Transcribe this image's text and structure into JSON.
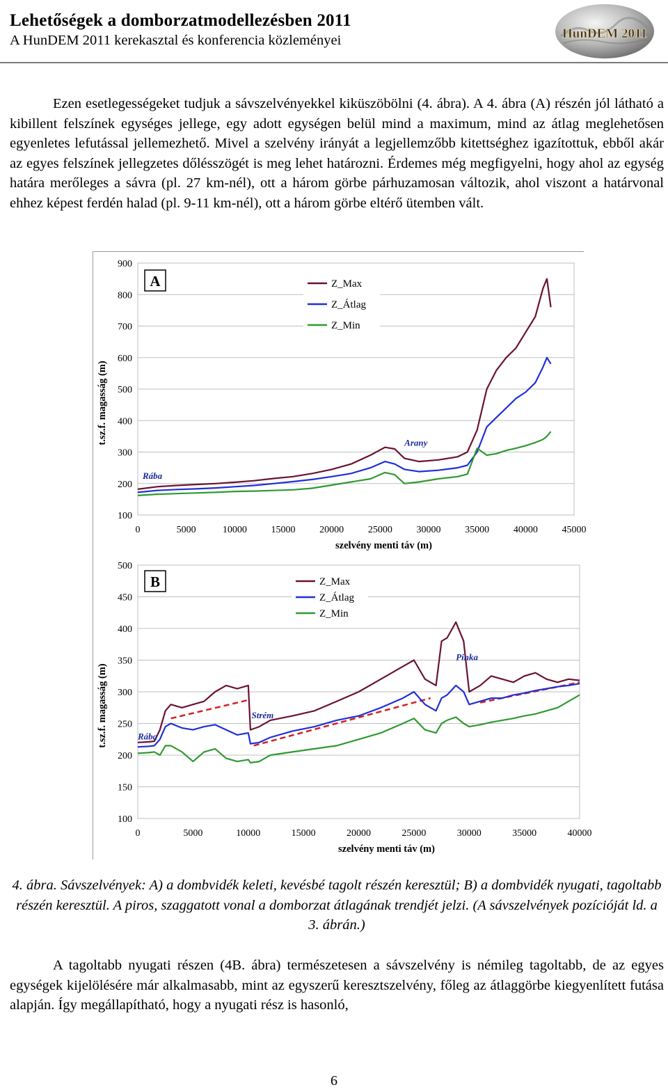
{
  "header": {
    "title": "Lehetőségek a domborzatmodellezésben 2011",
    "subtitle": "A HunDEM 2011 kerekasztal és konferencia közleményei",
    "logo_text": "HunDEM 2011"
  },
  "paragraph1": "Ezen esetlegességeket tudjuk a sávszelvényekkel kiküszöbölni (4. ábra). A 4. ábra (A) részén jól látható a kibillent felszínek egységes jellege, egy adott egységen belül mind a maximum, mind az átlag meglehetősen egyenletes lefutással jellemezhető. Mivel a szelvény irányát a legjellemzőbb kitettséghez igazítottuk, ebből akár az egyes felszínek jellegzetes dőlésszögét is meg lehet határozni. Érdemes még megfigyelni, hogy ahol az egység határa merőleges a sávra (pl. 27 km-nél), ott a három görbe párhuzamosan változik, ahol viszont a határvonal ehhez képest ferdén halad (pl. 9-11 km-nél), ott a három görbe eltérő ütemben vált.",
  "caption": "4. ábra. Sávszelvények: A) a dombvidék keleti, kevésbé tagolt részén keresztül; B) a dombvidék nyugati, tagoltabb részén keresztül. A piros, szaggatott vonal a domborzat átlagának trendjét jelzi. (A sávszelvények pozícióját ld. a 3. ábrán.)",
  "paragraph2": "A tagoltabb nyugati részen (4B. ábra) természetesen a sávszelvény is némileg tagoltabb, de az egyes egységek kijelölésére már alkalmasabb, mint az egyszerű keresztszelvény, főleg az átlaggörbe kiegyenlített futása alapján. Így megállapítható, hogy a nyugati rész is hasonló,",
  "page_number": "6",
  "colors": {
    "max": "#6b1230",
    "avg": "#1f2fd8",
    "min": "#2f9a2f",
    "trend": "#d42020",
    "grid": "#bfbfbf"
  },
  "chart_data": [
    {
      "type": "line",
      "panel_label": "A",
      "xlabel": "szelvény menti táv (m)",
      "ylabel": "t.sz.f. magasság (m)",
      "xlim": [
        0,
        45000
      ],
      "ylim": [
        100,
        900
      ],
      "x_ticks": [
        0,
        5000,
        10000,
        15000,
        20000,
        25000,
        30000,
        35000,
        40000,
        45000
      ],
      "y_ticks": [
        100,
        200,
        300,
        400,
        500,
        600,
        700,
        800,
        900
      ],
      "legend": [
        "Z_Max",
        "Z_Átlag",
        "Z_Min"
      ],
      "annotations": [
        {
          "text": "Rába",
          "x": 500,
          "y": 215
        },
        {
          "text": "Arany",
          "x": 27500,
          "y": 320
        }
      ],
      "series": [
        {
          "name": "Z_Max",
          "x": [
            0,
            2000,
            4000,
            6000,
            8000,
            10000,
            12000,
            14000,
            16000,
            18000,
            20000,
            22000,
            24000,
            25500,
            26500,
            27500,
            29000,
            31000,
            33000,
            34000,
            35000,
            36000,
            37000,
            38000,
            39000,
            40000,
            41000,
            41800,
            42200,
            42600
          ],
          "y": [
            182,
            190,
            194,
            197,
            200,
            204,
            209,
            216,
            222,
            232,
            245,
            262,
            290,
            315,
            310,
            280,
            270,
            275,
            285,
            300,
            370,
            500,
            560,
            600,
            630,
            680,
            730,
            820,
            850,
            760
          ]
        },
        {
          "name": "Z_Átlag",
          "x": [
            0,
            2000,
            4000,
            6000,
            8000,
            10000,
            12000,
            14000,
            16000,
            18000,
            20000,
            22000,
            24000,
            25500,
            26500,
            27500,
            29000,
            31000,
            33000,
            34000,
            35000,
            36000,
            37000,
            38000,
            39000,
            40000,
            41000,
            41800,
            42200,
            42600
          ],
          "y": [
            172,
            178,
            181,
            183,
            186,
            190,
            194,
            200,
            206,
            213,
            222,
            232,
            250,
            270,
            262,
            245,
            238,
            242,
            250,
            258,
            300,
            380,
            410,
            440,
            470,
            490,
            520,
            570,
            600,
            580
          ]
        },
        {
          "name": "Z_Min",
          "x": [
            0,
            2000,
            4000,
            6000,
            8000,
            10000,
            12000,
            14000,
            16000,
            18000,
            20000,
            22000,
            24000,
            25500,
            26500,
            27500,
            29000,
            31000,
            33000,
            34000,
            35000,
            36000,
            37000,
            38000,
            39000,
            40000,
            41000,
            41800,
            42200,
            42600
          ],
          "y": [
            162,
            166,
            168,
            170,
            172,
            175,
            176,
            178,
            180,
            185,
            195,
            205,
            215,
            235,
            228,
            200,
            205,
            215,
            222,
            230,
            312,
            290,
            295,
            305,
            312,
            320,
            330,
            340,
            350,
            365
          ]
        }
      ]
    },
    {
      "type": "line",
      "panel_label": "B",
      "xlabel": "szelvény menti táv (m)",
      "ylabel": "t.sz.f. magasság (m)",
      "xlim": [
        0,
        40000
      ],
      "ylim": [
        100,
        500
      ],
      "x_ticks": [
        0,
        5000,
        10000,
        15000,
        20000,
        25000,
        30000,
        35000,
        40000
      ],
      "y_ticks": [
        100,
        150,
        200,
        250,
        300,
        350,
        400,
        450,
        500
      ],
      "legend": [
        "Z_Max",
        "Z_Átlag",
        "Z_Min"
      ],
      "annotations": [
        {
          "text": "Rába",
          "x": 0,
          "y": 225
        },
        {
          "text": "Strém",
          "x": 10300,
          "y": 258
        },
        {
          "text": "Pinka",
          "x": 28800,
          "y": 350
        }
      ],
      "series": [
        {
          "name": "Z_Max",
          "x": [
            0,
            1000,
            1500,
            2000,
            2500,
            3000,
            4000,
            5000,
            6000,
            7000,
            8000,
            9000,
            10000,
            10200,
            11000,
            12000,
            14000,
            16000,
            18000,
            20000,
            22000,
            24000,
            25000,
            26000,
            27000,
            27500,
            28000,
            28800,
            29500,
            30000,
            31000,
            32000,
            33000,
            34000,
            35000,
            36000,
            37000,
            38000,
            39000,
            40000
          ],
          "y": [
            220,
            221,
            222,
            240,
            270,
            280,
            275,
            280,
            285,
            300,
            310,
            305,
            310,
            240,
            245,
            255,
            262,
            270,
            285,
            300,
            320,
            340,
            350,
            320,
            310,
            380,
            385,
            410,
            380,
            300,
            310,
            325,
            320,
            315,
            325,
            330,
            320,
            315,
            320,
            318
          ]
        },
        {
          "name": "Z_Átlag",
          "x": [
            0,
            1000,
            1500,
            2000,
            2500,
            3000,
            4000,
            5000,
            6000,
            7000,
            8000,
            9000,
            10000,
            10200,
            11000,
            12000,
            14000,
            16000,
            18000,
            20000,
            22000,
            24000,
            25000,
            26000,
            27000,
            27500,
            28000,
            28800,
            29500,
            30000,
            31000,
            32000,
            33000,
            34000,
            35000,
            36000,
            37000,
            38000,
            39000,
            40000
          ],
          "y": [
            213,
            214,
            215,
            225,
            245,
            250,
            243,
            240,
            245,
            248,
            240,
            232,
            235,
            218,
            220,
            228,
            238,
            245,
            255,
            262,
            275,
            290,
            300,
            280,
            270,
            290,
            295,
            310,
            300,
            280,
            285,
            290,
            290,
            295,
            298,
            302,
            305,
            308,
            310,
            313
          ]
        },
        {
          "name": "Z_Min",
          "x": [
            0,
            1000,
            1500,
            2000,
            2500,
            3000,
            4000,
            5000,
            6000,
            7000,
            8000,
            9000,
            10000,
            10200,
            11000,
            12000,
            14000,
            16000,
            18000,
            20000,
            22000,
            24000,
            25000,
            26000,
            27000,
            27500,
            28000,
            28800,
            29500,
            30000,
            31000,
            32000,
            33000,
            34000,
            35000,
            36000,
            37000,
            38000,
            39000,
            40000
          ],
          "y": [
            203,
            204,
            205,
            200,
            215,
            215,
            205,
            190,
            205,
            210,
            195,
            190,
            193,
            188,
            190,
            200,
            205,
            210,
            215,
            225,
            235,
            250,
            258,
            240,
            235,
            250,
            255,
            260,
            250,
            245,
            248,
            252,
            255,
            258,
            262,
            265,
            270,
            275,
            285,
            295
          ]
        }
      ],
      "trend_segments": [
        {
          "x": [
            3000,
            10000
          ],
          "y": [
            258,
            287
          ]
        },
        {
          "x": [
            10500,
            26500
          ],
          "y": [
            215,
            290
          ]
        },
        {
          "x": [
            31000,
            40000
          ],
          "y": [
            283,
            315
          ]
        }
      ]
    }
  ]
}
